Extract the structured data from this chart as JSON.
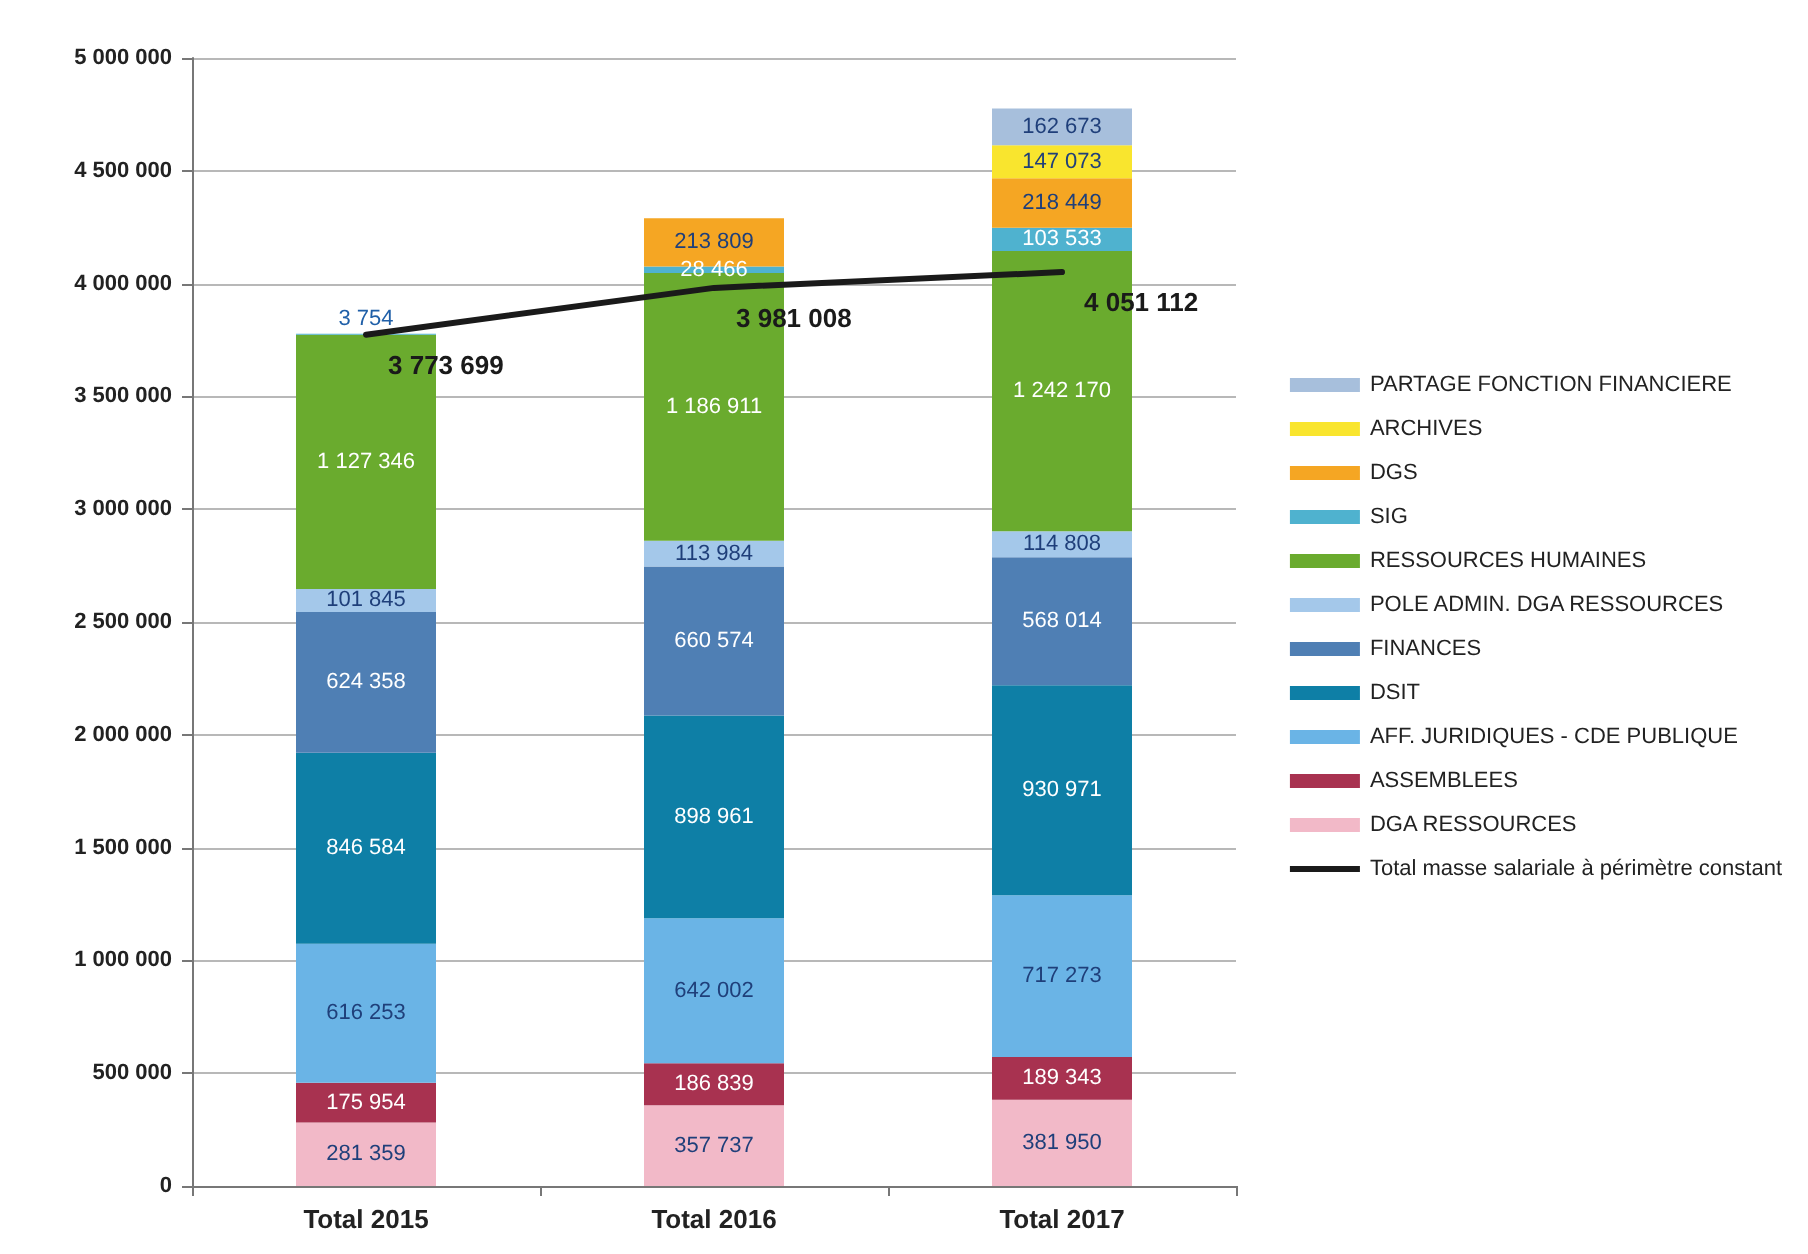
{
  "chart_data": {
    "type": "bar",
    "stacked": true,
    "categories": [
      "Total 2015",
      "Total 2016",
      "Total 2017"
    ],
    "series": [
      {
        "name": "DGA RESSOURCES",
        "color": "#f2b9c8",
        "values": [
          281359,
          357737,
          381950
        ],
        "value_labels": [
          "281 359",
          "357 737",
          "381 950"
        ]
      },
      {
        "name": "ASSEMBLEES",
        "color": "#a83250",
        "values": [
          175954,
          186839,
          189343
        ],
        "value_labels": [
          "175 954",
          "186 839",
          "189 343"
        ]
      },
      {
        "name": "AFF. JURIDIQUES - CDE PUBLIQUE",
        "color": "#6ab4e6",
        "values": [
          616253,
          642002,
          717273
        ],
        "value_labels": [
          "616 253",
          "642 002",
          "717 273"
        ]
      },
      {
        "name": "DSIT",
        "color": "#0e7fa6",
        "values": [
          846584,
          898961,
          930971
        ],
        "value_labels": [
          "846 584",
          "898 961",
          "930 971"
        ]
      },
      {
        "name": "FINANCES",
        "color": "#4f7fb4",
        "values": [
          624358,
          660574,
          568014
        ],
        "value_labels": [
          "624 358",
          "660 574",
          "568 014"
        ]
      },
      {
        "name": "POLE ADMIN. DGA RESSOURCES",
        "color": "#a4c8ea",
        "values": [
          101845,
          113984,
          114808
        ],
        "value_labels": [
          "101 845",
          "113 984",
          "114 808"
        ]
      },
      {
        "name": "RESSOURCES HUMAINES",
        "color": "#6aab2e",
        "values": [
          1127346,
          1186911,
          1242170
        ],
        "value_labels": [
          "1 127 346",
          "1 186 911",
          "1 242 170"
        ]
      },
      {
        "name": "SIG",
        "color": "#4fb2cf",
        "values": [
          3754,
          28466,
          103533
        ],
        "value_labels": [
          "3 754",
          "28 466",
          "103 533"
        ]
      },
      {
        "name": "DGS",
        "color": "#f5a623",
        "values": [
          null,
          213809,
          218449
        ],
        "value_labels": [
          null,
          "213 809",
          "218 449"
        ]
      },
      {
        "name": "ARCHIVES",
        "color": "#f9e52e",
        "values": [
          null,
          null,
          147073
        ],
        "value_labels": [
          null,
          null,
          "147 073"
        ]
      },
      {
        "name": "PARTAGE FONCTION FINANCIERE",
        "color": "#a7bfdc",
        "values": [
          null,
          null,
          162673
        ],
        "value_labels": [
          null,
          null,
          "162 673"
        ]
      },
      {
        "name": "Total masse salariale à périmètre constant",
        "type": "line",
        "color": "#1a1a1a",
        "values": [
          3773699,
          3981008,
          4051112
        ],
        "value_labels": [
          "3 773 699",
          "3 981 008",
          "4 051 112"
        ]
      }
    ],
    "ylim": [
      0,
      5000000
    ],
    "yticks": [
      0,
      {
        "value": 500000,
        "label": "500 000"
      },
      {
        "value": 1000000,
        "label": "1 000 000"
      },
      {
        "value": 1500000,
        "label": "1 500 000"
      },
      {
        "value": 2000000,
        "label": "2 000 000"
      },
      {
        "value": 2500000,
        "label": "2 500 000"
      },
      {
        "value": 3000000,
        "label": "3 000 000"
      },
      {
        "value": 3500000,
        "label": "3 500 000"
      },
      {
        "value": 4000000,
        "label": "4 000 000"
      },
      {
        "value": 4500000,
        "label": "4 500 000"
      },
      {
        "value": 5000000,
        "label": "5 000 000"
      }
    ],
    "grid": "y",
    "legend": "right"
  }
}
